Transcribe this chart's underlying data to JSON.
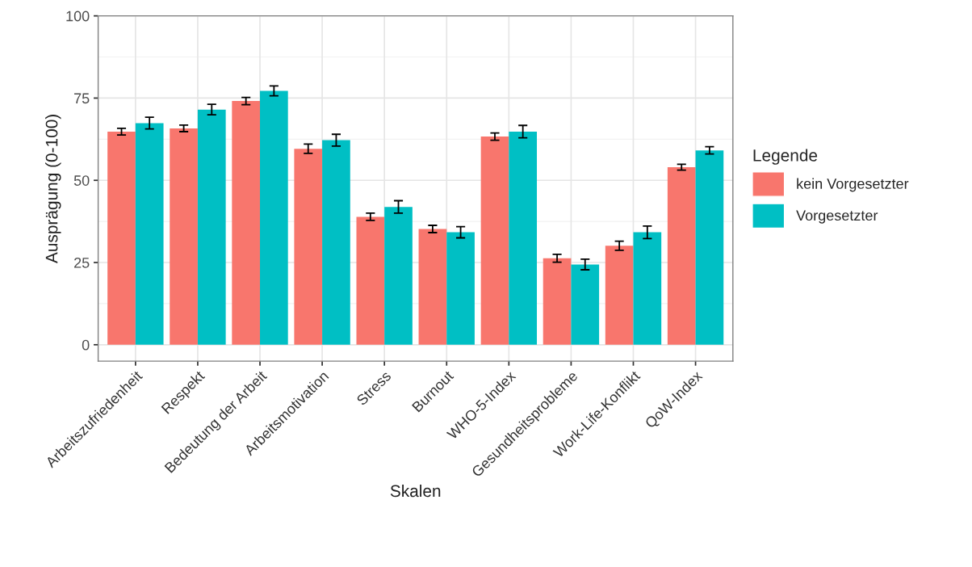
{
  "chart_data": {
    "type": "bar",
    "categories": [
      "Arbeitszufriedenheit",
      "Respekt",
      "Bedeutung der Arbeit",
      "Arbeitsmotivation",
      "Stress",
      "Burnout",
      "WHO-5-Index",
      "Gesundheitsprobleme",
      "Work-Life-Konflikt",
      "QoW-Index"
    ],
    "series": [
      {
        "name": "kein Vorgesetzter",
        "color": "#f8766d",
        "values": [
          64.8,
          65.8,
          74.1,
          59.6,
          38.9,
          35.2,
          63.3,
          26.3,
          30.1,
          54.0
        ],
        "errors": [
          1.0,
          1.0,
          1.1,
          1.4,
          1.1,
          1.1,
          1.1,
          1.2,
          1.4,
          0.9
        ]
      },
      {
        "name": "Vorgesetzter",
        "color": "#00bfc4",
        "values": [
          67.4,
          71.5,
          77.2,
          62.2,
          41.9,
          34.2,
          64.8,
          24.4,
          34.2,
          59.1
        ],
        "errors": [
          1.8,
          1.6,
          1.5,
          1.8,
          1.9,
          1.7,
          1.9,
          1.6,
          1.9,
          1.1
        ]
      }
    ],
    "xlabel": "Skalen",
    "ylabel": "Ausprägung (0-100)",
    "legend_title": "Legende",
    "legend": "right",
    "ylim": [
      -5,
      100
    ],
    "yticks": [
      0,
      25,
      50,
      75,
      100
    ],
    "grid": true
  }
}
